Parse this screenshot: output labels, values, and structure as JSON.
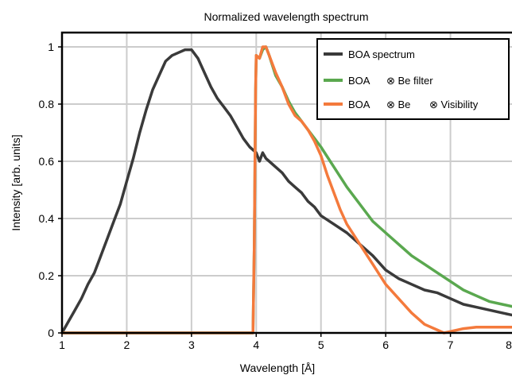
{
  "chart_data": {
    "type": "line",
    "title": "Normalized wavelength spectrum",
    "xlabel": "Wavelength [Å]",
    "ylabel": "Intensity [arb. units]",
    "xlim": [
      1,
      8
    ],
    "ylim": [
      0,
      1.05
    ],
    "xticks": [
      1,
      2,
      3,
      4,
      5,
      6,
      7,
      8
    ],
    "yticks": [
      0,
      0.2,
      0.4,
      0.6,
      0.8,
      1
    ],
    "ytick_labels": [
      "0",
      "0.2",
      "0.4",
      "0.6",
      "0.8",
      "1"
    ],
    "grid": true,
    "legend_position": "top-right",
    "series": [
      {
        "name": "BOA spectrum",
        "color": "#3a3a3a",
        "x": [
          1.0,
          1.1,
          1.2,
          1.3,
          1.4,
          1.5,
          1.6,
          1.7,
          1.8,
          1.9,
          2.0,
          2.1,
          2.2,
          2.3,
          2.4,
          2.5,
          2.6,
          2.7,
          2.8,
          2.9,
          3.0,
          3.1,
          3.2,
          3.3,
          3.4,
          3.5,
          3.6,
          3.7,
          3.8,
          3.9,
          4.0,
          4.05,
          4.1,
          4.15,
          4.2,
          4.3,
          4.4,
          4.5,
          4.6,
          4.7,
          4.8,
          4.9,
          5.0,
          5.2,
          5.4,
          5.6,
          5.8,
          6.0,
          6.2,
          6.4,
          6.6,
          6.8,
          7.0,
          7.2,
          7.4,
          7.6,
          7.8,
          8.0
        ],
        "y": [
          0.0,
          0.04,
          0.08,
          0.12,
          0.17,
          0.21,
          0.27,
          0.33,
          0.39,
          0.45,
          0.53,
          0.61,
          0.7,
          0.78,
          0.85,
          0.9,
          0.95,
          0.97,
          0.98,
          0.99,
          0.99,
          0.96,
          0.91,
          0.86,
          0.82,
          0.79,
          0.76,
          0.72,
          0.68,
          0.65,
          0.63,
          0.6,
          0.63,
          0.61,
          0.6,
          0.58,
          0.56,
          0.53,
          0.51,
          0.49,
          0.46,
          0.44,
          0.41,
          0.38,
          0.35,
          0.31,
          0.27,
          0.22,
          0.19,
          0.17,
          0.15,
          0.14,
          0.12,
          0.1,
          0.09,
          0.08,
          0.07,
          0.06
        ]
      },
      {
        "name": "BOA ⊗ Be filter",
        "color": "#5aa84f",
        "x": [
          1.0,
          3.95,
          3.97,
          3.99,
          4.0,
          4.05,
          4.1,
          4.15,
          4.2,
          4.3,
          4.4,
          4.5,
          4.6,
          4.7,
          4.8,
          4.9,
          5.0,
          5.2,
          5.4,
          5.6,
          5.8,
          6.0,
          6.2,
          6.4,
          6.6,
          6.8,
          7.0,
          7.2,
          7.4,
          7.6,
          7.8,
          8.0
        ],
        "y": [
          0.0,
          0.0,
          0.3,
          0.85,
          0.97,
          0.96,
          0.99,
          1.0,
          0.97,
          0.9,
          0.86,
          0.81,
          0.77,
          0.74,
          0.71,
          0.68,
          0.65,
          0.58,
          0.51,
          0.45,
          0.39,
          0.35,
          0.31,
          0.27,
          0.24,
          0.21,
          0.18,
          0.15,
          0.13,
          0.11,
          0.1,
          0.09
        ]
      },
      {
        "name": "BOA ⊗ Be ⊗ Visibility",
        "color": "#f47a3c",
        "x": [
          1.0,
          3.95,
          3.97,
          3.99,
          4.0,
          4.05,
          4.1,
          4.15,
          4.2,
          4.3,
          4.4,
          4.5,
          4.6,
          4.7,
          4.8,
          4.9,
          5.0,
          5.1,
          5.2,
          5.3,
          5.4,
          5.6,
          5.8,
          6.0,
          6.2,
          6.4,
          6.6,
          6.8,
          6.9,
          7.0,
          7.2,
          7.4,
          7.6,
          7.8,
          8.0
        ],
        "y": [
          0.0,
          0.0,
          0.3,
          0.85,
          0.97,
          0.96,
          1.0,
          1.0,
          0.97,
          0.91,
          0.86,
          0.8,
          0.76,
          0.74,
          0.71,
          0.67,
          0.62,
          0.55,
          0.49,
          0.43,
          0.38,
          0.31,
          0.24,
          0.17,
          0.12,
          0.07,
          0.03,
          0.01,
          0.0,
          0.005,
          0.015,
          0.02,
          0.02,
          0.02,
          0.02
        ]
      }
    ],
    "legend": [
      {
        "parts": [
          "BOA spectrum"
        ],
        "color": "#3a3a3a"
      },
      {
        "parts": [
          "BOA",
          "⊗ Be filter"
        ],
        "color": "#5aa84f"
      },
      {
        "parts": [
          "BOA",
          "⊗ Be",
          "⊗ Visibility"
        ],
        "color": "#f47a3c"
      }
    ]
  }
}
